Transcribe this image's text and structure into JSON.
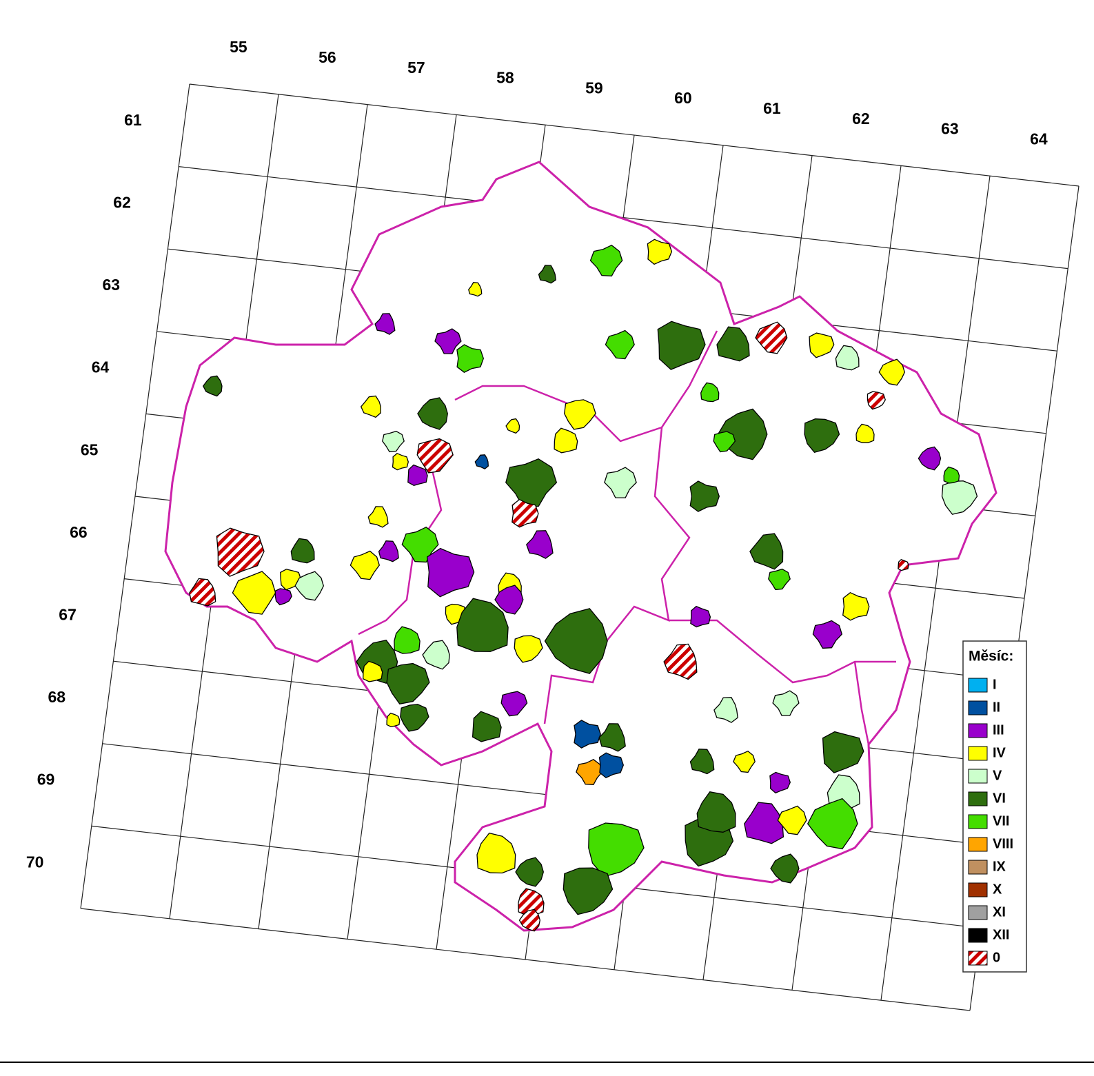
{
  "column_labels": [
    "55",
    "56",
    "57",
    "58",
    "59",
    "60",
    "61",
    "62",
    "63",
    "64"
  ],
  "row_labels": [
    "61",
    "62",
    "63",
    "64",
    "65",
    "66",
    "67",
    "68",
    "69",
    "70"
  ],
  "legend": {
    "title": "Měsíc:",
    "items": [
      {
        "label": "I",
        "color": "#00b0f0"
      },
      {
        "label": "II",
        "color": "#0050a0"
      },
      {
        "label": "III",
        "color": "#9900cc"
      },
      {
        "label": "IV",
        "color": "#ffff00"
      },
      {
        "label": "V",
        "color": "#ccffcc"
      },
      {
        "label": "VI",
        "color": "#2e6e0e"
      },
      {
        "label": "VII",
        "color": "#44dd00"
      },
      {
        "label": "VIII",
        "color": "#ffa500"
      },
      {
        "label": "IX",
        "color": "#c09060"
      },
      {
        "label": "X",
        "color": "#a03000"
      },
      {
        "label": "XI",
        "color": "#a0a0a0"
      },
      {
        "label": "XII",
        "color": "#000000"
      },
      {
        "label": "0",
        "color": "#cc0000",
        "pattern": "hatch"
      }
    ]
  }
}
